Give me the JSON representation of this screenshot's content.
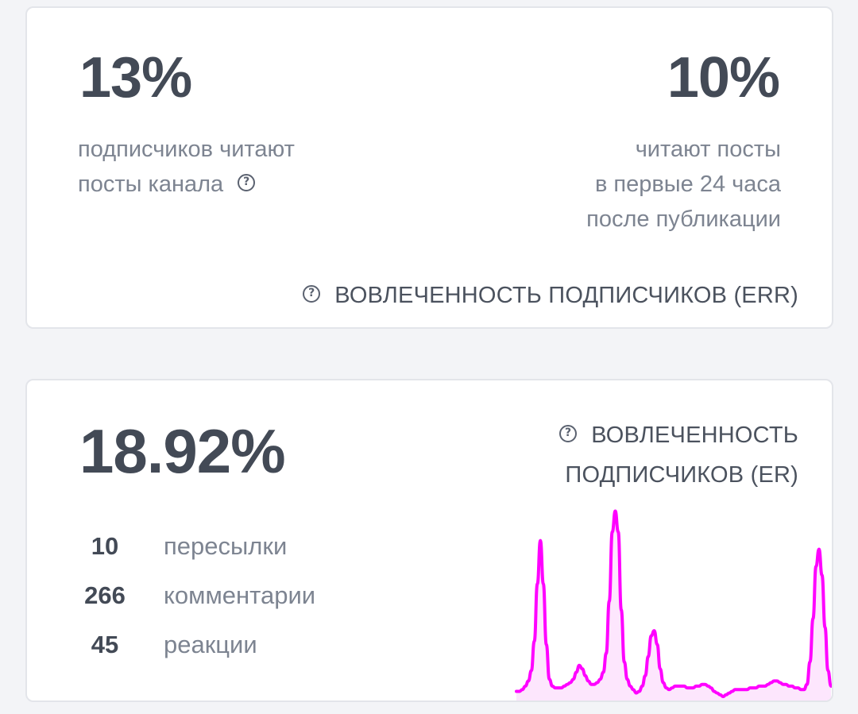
{
  "err_card": {
    "left_value": "13%",
    "left_caption": [
      "подписчиков читают",
      "посты канала"
    ],
    "right_value": "10%",
    "right_caption": [
      "читают посты",
      "в первые 24 часа",
      "после публикации"
    ],
    "section_label": "ВОВЛЕЧЕННОСТЬ ПОДПИСЧИКОВ (ERR)"
  },
  "er_card": {
    "value": "18.92%",
    "section_label": [
      "ВОВЛЕЧЕННОСТЬ",
      "ПОДПИСЧИКОВ (ER)"
    ],
    "stats": [
      {
        "value": "10",
        "label": "пересылки"
      },
      {
        "value": "266",
        "label": "комментарии"
      },
      {
        "value": "45",
        "label": "реакции"
      }
    ]
  },
  "sparkline": {
    "values": [
      0.3,
      0.3,
      0.4,
      0.6,
      0.9,
      1.5,
      3.2,
      6.5,
      9.0,
      6.5,
      3.0,
      1.0,
      0.6,
      0.5,
      0.5,
      0.5,
      0.6,
      0.7,
      0.8,
      1.0,
      1.4,
      1.8,
      1.6,
      1.2,
      0.9,
      0.7,
      0.7,
      0.8,
      1.0,
      1.4,
      2.5,
      5.5,
      9.5,
      10.7,
      9.5,
      5.0,
      2.0,
      1.0,
      0.6,
      0.4,
      0.2,
      0.3,
      0.6,
      1.2,
      2.3,
      3.5,
      3.8,
      3.0,
      1.6,
      0.8,
      0.5,
      0.4,
      0.5,
      0.6,
      0.6,
      0.6,
      0.6,
      0.5,
      0.5,
      0.5,
      0.6,
      0.6,
      0.7,
      0.7,
      0.6,
      0.5,
      0.3,
      0.2,
      0.1,
      0.0,
      0.1,
      0.2,
      0.3,
      0.4,
      0.4,
      0.4,
      0.4,
      0.4,
      0.5,
      0.5,
      0.5,
      0.6,
      0.6,
      0.6,
      0.7,
      0.8,
      0.9,
      0.9,
      0.8,
      0.7,
      0.7,
      0.6,
      0.6,
      0.5,
      0.5,
      0.4,
      0.4,
      0.7,
      2.0,
      4.5,
      7.5,
      8.5,
      7.0,
      4.0,
      1.5,
      0.6
    ],
    "max": 11,
    "line_color": "#ff00ff",
    "fill_color": "#fde6fd"
  }
}
